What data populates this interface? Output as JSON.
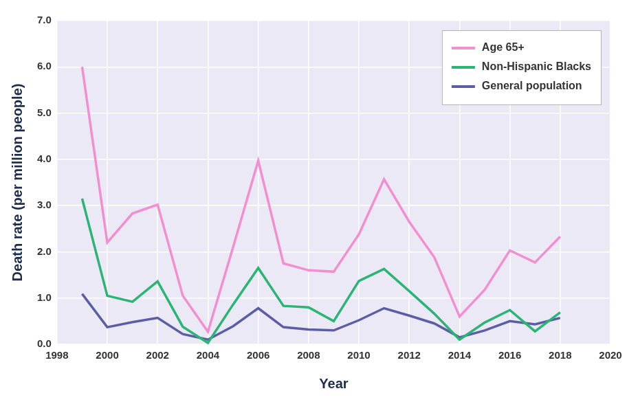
{
  "chart_data": {
    "type": "line",
    "x_label": "Year",
    "y_label": "Death rate (per million people)",
    "x": [
      1999,
      2000,
      2001,
      2002,
      2003,
      2004,
      2005,
      2006,
      2007,
      2008,
      2009,
      2010,
      2011,
      2012,
      2013,
      2014,
      2015,
      2016,
      2017,
      2018
    ],
    "series": [
      {
        "name": "Age 65+",
        "color": "#f38fd0",
        "values": [
          6.0,
          2.2,
          2.83,
          3.02,
          1.05,
          0.27,
          2.1,
          3.97,
          1.75,
          1.6,
          1.57,
          2.38,
          3.57,
          2.65,
          1.88,
          0.6,
          1.18,
          2.03,
          1.77,
          2.33
        ]
      },
      {
        "name": "Non-Hispanic Blacks",
        "color": "#2bb574",
        "values": [
          3.15,
          1.05,
          0.92,
          1.36,
          0.38,
          0.03,
          0.86,
          1.65,
          0.83,
          0.8,
          0.5,
          1.37,
          1.63,
          1.15,
          0.66,
          0.1,
          0.47,
          0.74,
          0.28,
          0.69
        ]
      },
      {
        "name": "General population",
        "color": "#5b5ea6",
        "values": [
          1.09,
          0.37,
          0.48,
          0.57,
          0.22,
          0.1,
          0.39,
          0.78,
          0.37,
          0.32,
          0.3,
          0.52,
          0.78,
          0.62,
          0.45,
          0.15,
          0.3,
          0.5,
          0.43,
          0.57
        ]
      }
    ],
    "xlim": [
      1998,
      2020
    ],
    "xticks": [
      1998,
      2000,
      2002,
      2004,
      2006,
      2008,
      2010,
      2012,
      2014,
      2016,
      2018,
      2020
    ],
    "ylim": [
      0,
      7
    ],
    "yticks": [
      {
        "value": 0,
        "label": "0.0"
      },
      {
        "value": 1,
        "label": "1.0"
      },
      {
        "value": 2,
        "label": "2.0"
      },
      {
        "value": 3,
        "label": "3.0"
      },
      {
        "value": 4,
        "label": "4.0"
      },
      {
        "value": 5,
        "label": "5.0"
      },
      {
        "value": 6,
        "label": "6.0"
      },
      {
        "value": 7,
        "label": "7.0"
      }
    ],
    "grid": true,
    "legend": "top-right",
    "marker": "none"
  }
}
